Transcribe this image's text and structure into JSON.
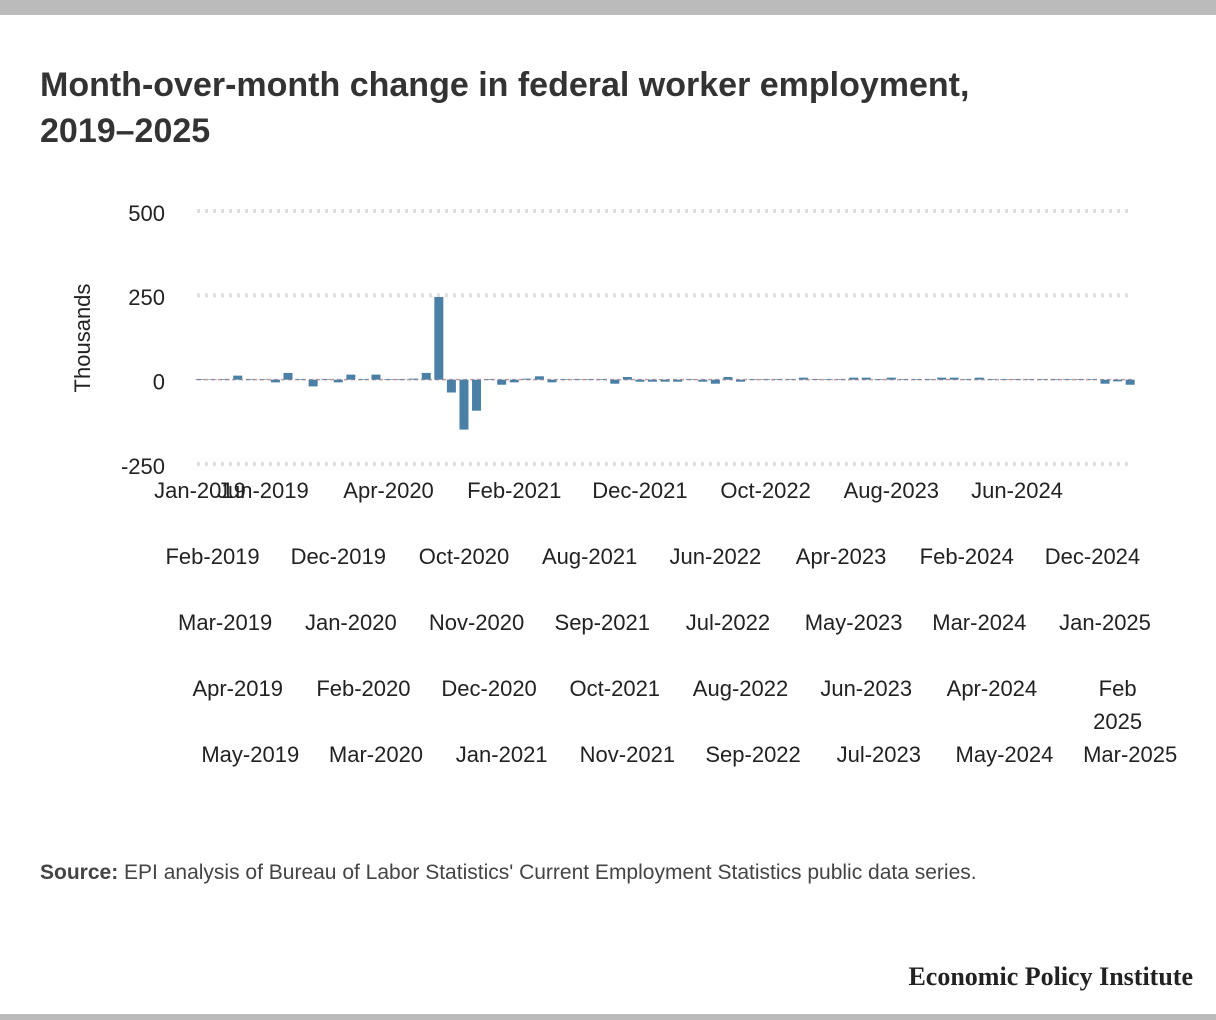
{
  "chart_data": {
    "type": "bar",
    "title": "Month-over-month change in federal worker employment, 2019–2025",
    "ylabel": "Thousands",
    "source_label": "Source:",
    "source": "EPI analysis of Bureau of Labor Statistics' Current Employment Statistics public data series.",
    "brand": "Economic Policy Institute",
    "color": "#4b80a6",
    "ylim": [
      -250,
      500
    ],
    "yticks": [
      500,
      250,
      0,
      -250
    ],
    "grid": true,
    "categories": [
      "Jan-2019",
      "Feb-2019",
      "Mar-2019",
      "Apr-2019",
      "May-2019",
      "Jun-2019",
      null,
      null,
      null,
      null,
      null,
      "Dec-2019",
      "Jan-2020",
      "Feb-2020",
      "Mar-2020",
      "Apr-2020",
      null,
      null,
      null,
      null,
      null,
      "Oct-2020",
      "Nov-2020",
      "Dec-2020",
      "Jan-2021",
      "Feb-2021",
      null,
      null,
      null,
      null,
      null,
      "Aug-2021",
      "Sep-2021",
      "Oct-2021",
      "Nov-2021",
      "Dec-2021",
      null,
      null,
      null,
      null,
      null,
      "Jun-2022",
      "Jul-2022",
      "Aug-2022",
      "Sep-2022",
      "Oct-2022",
      null,
      null,
      null,
      null,
      null,
      "Apr-2023",
      "May-2023",
      "Jun-2023",
      "Jul-2023",
      "Aug-2023",
      null,
      null,
      null,
      null,
      null,
      "Feb-2024",
      "Mar-2024",
      "Apr-2024",
      "May-2024",
      "Jun-2024",
      null,
      null,
      null,
      null,
      null,
      "Dec-2024",
      "Jan-2025",
      "Feb 2025",
      "Mar-2025"
    ],
    "values": [
      2,
      1,
      2,
      12,
      2,
      1,
      -8,
      20,
      2,
      -20,
      2,
      -8,
      15,
      2,
      15,
      2,
      2,
      3,
      20,
      245,
      -38,
      -148,
      -92,
      2,
      -15,
      -8,
      3,
      10,
      -8,
      2,
      2,
      2,
      2,
      -12,
      8,
      -6,
      -6,
      -6,
      -6,
      2,
      -6,
      -12,
      8,
      -6,
      2,
      2,
      2,
      2,
      6,
      2,
      2,
      2,
      6,
      6,
      2,
      6,
      2,
      2,
      2,
      6,
      6,
      2,
      6,
      2,
      2,
      2,
      2,
      2,
      2,
      2,
      2,
      2,
      -12,
      -5,
      -15
    ]
  }
}
